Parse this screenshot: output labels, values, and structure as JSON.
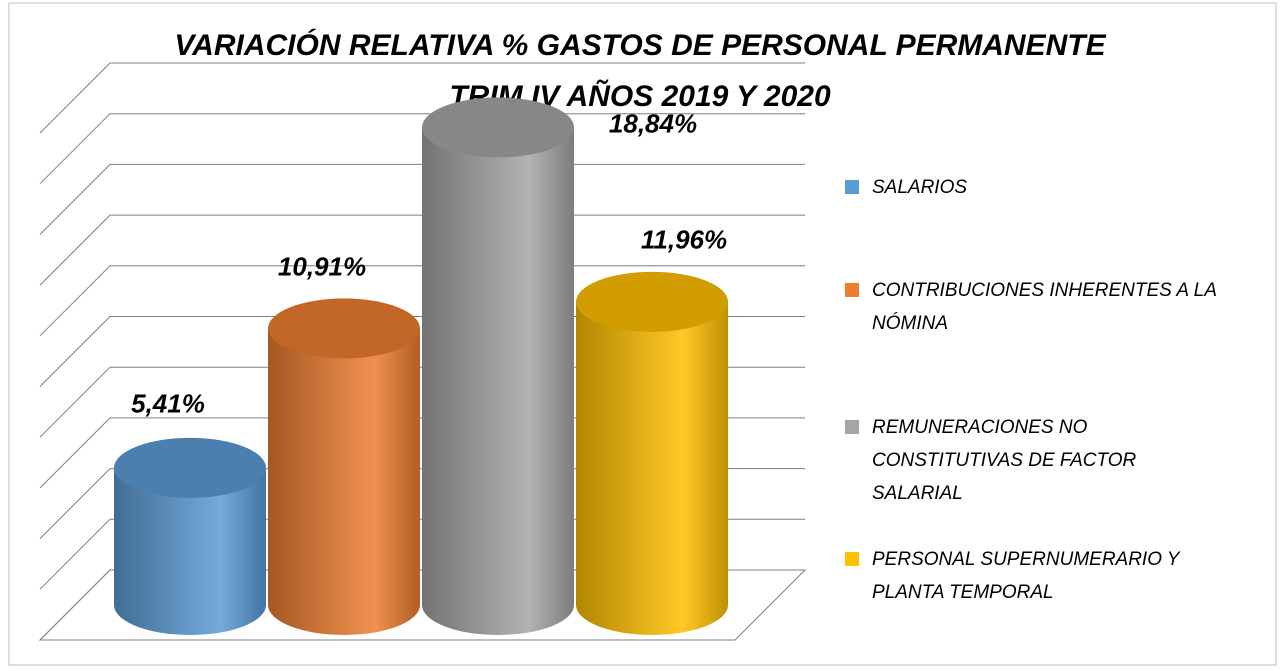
{
  "chart_data": {
    "type": "bar3d",
    "title": [
      "VARIACIÓN RELATIVA % GASTOS DE PERSONAL PERMANENTE",
      "TRIM IV AÑOS 2019 Y 2020"
    ],
    "categories": [
      "SALARIOS",
      "CONTRIBUCIONES INHERENTES A LA NÓMINA",
      "REMUNERACIONES NO CONSTITUTIVAS DE FACTOR SALARIAL",
      "PERSONAL SUPERNUMERARIO Y PLANTA TEMPORAL"
    ],
    "values": [
      5.41,
      10.91,
      18.84,
      11.96
    ],
    "value_labels": [
      "5,41%",
      "10,91%",
      "18,84%",
      "11,96%"
    ],
    "colors": [
      "#5b9bd5",
      "#ed7d31",
      "#a5a5a5",
      "#ffc000"
    ],
    "ylim": [
      0,
      20
    ],
    "yticks": [
      0,
      2,
      4,
      6,
      8,
      10,
      12,
      14,
      16,
      18,
      20
    ],
    "grid": true,
    "legend": "right"
  }
}
